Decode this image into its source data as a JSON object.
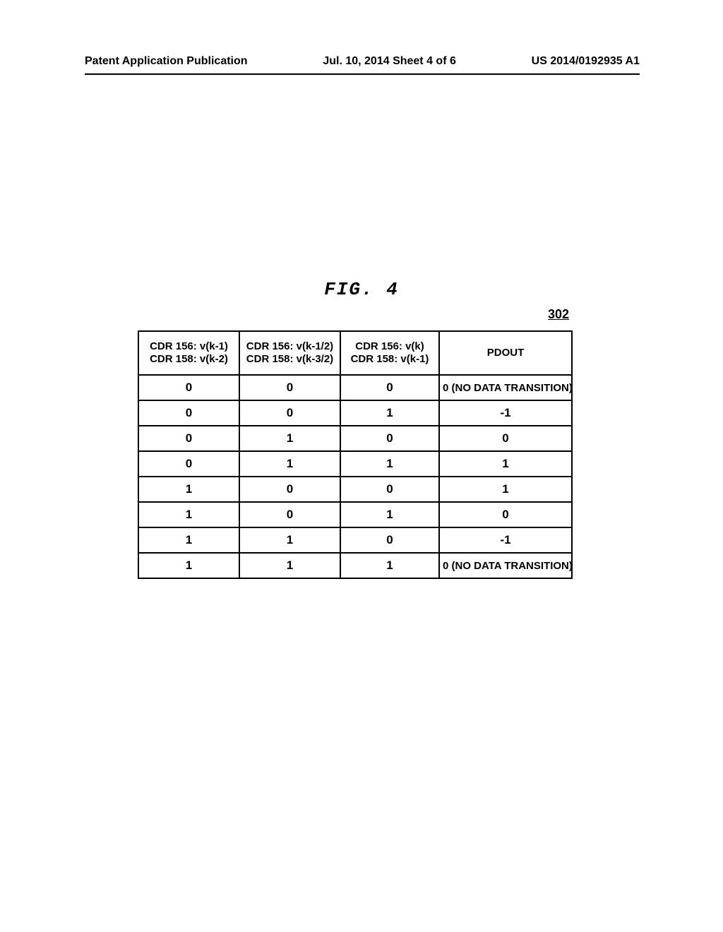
{
  "header": {
    "left": "Patent Application Publication",
    "center": "Jul. 10, 2014  Sheet 4 of 6",
    "right": "US 2014/0192935 A1"
  },
  "figure": {
    "label": "FIG. 4",
    "ref": "302"
  },
  "table": {
    "columns": [
      {
        "line1": "CDR 156: v(k-1)",
        "line2": "CDR 158: v(k-2)"
      },
      {
        "line1": "CDR 156: v(k-1/2)",
        "line2": "CDR 158: v(k-3/2)"
      },
      {
        "line1": "CDR 156: v(k)",
        "line2": "CDR 158: v(k-1)"
      },
      {
        "line1": "PDOUT",
        "line2": ""
      }
    ],
    "rows": [
      [
        "0",
        "0",
        "0",
        {
          "value": "0 (NO DATA TRANSITION)",
          "align": "left"
        }
      ],
      [
        "0",
        "0",
        "1",
        {
          "value": "-1",
          "align": "center"
        }
      ],
      [
        "0",
        "1",
        "0",
        {
          "value": "0",
          "align": "center"
        }
      ],
      [
        "0",
        "1",
        "1",
        {
          "value": "1",
          "align": "center"
        }
      ],
      [
        "1",
        "0",
        "0",
        {
          "value": "1",
          "align": "center"
        }
      ],
      [
        "1",
        "0",
        "1",
        {
          "value": "0",
          "align": "center"
        }
      ],
      [
        "1",
        "1",
        "0",
        {
          "value": "-1",
          "align": "center"
        }
      ],
      [
        "1",
        "1",
        "1",
        {
          "value": "0 (NO DATA TRANSITION)",
          "align": "left"
        }
      ]
    ]
  }
}
